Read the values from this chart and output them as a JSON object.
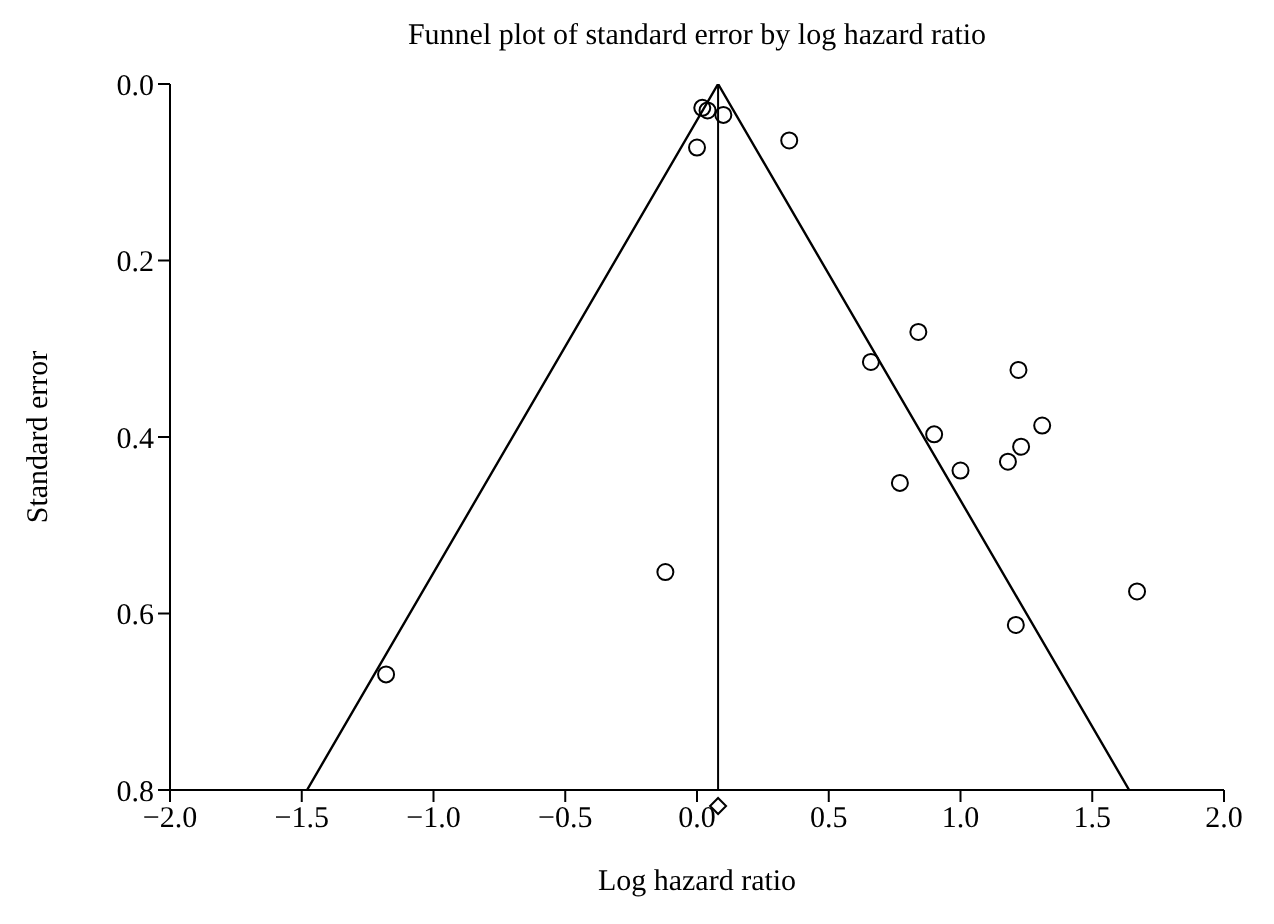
{
  "chart_data": {
    "type": "scatter",
    "title": "Funnel plot of standard error by log hazard ratio",
    "xlabel": "Log hazard ratio",
    "ylabel": "Standard error",
    "xlim": [
      -2.0,
      2.0
    ],
    "xticks": [
      {
        "value": -2,
        "label": "−2.0"
      },
      {
        "value": -1.5,
        "label": "−1.5"
      },
      {
        "value": -1,
        "label": "−1.0"
      },
      {
        "value": -0.5,
        "label": "−0.5"
      },
      {
        "value": 0,
        "label": "0.0"
      },
      {
        "value": 0.5,
        "label": "0.5"
      },
      {
        "value": 1,
        "label": "1.0"
      },
      {
        "value": 1.5,
        "label": "1.5"
      },
      {
        "value": 2,
        "label": "2.0"
      }
    ],
    "ylim": [
      0.8,
      0.0
    ],
    "yticks": [
      {
        "value": 0,
        "label": "0.0"
      },
      0.2,
      0.4,
      0.6,
      0.8
    ],
    "marker": "circle",
    "ref_lines": [
      {
        "axis": "x",
        "value": 0.08,
        "color": "#000000"
      }
    ],
    "series": [
      {
        "type": "scatter",
        "color": "#000000",
        "x": [
          0.02,
          0.04,
          0.1,
          0.0,
          0.35,
          0.84,
          0.66,
          1.22,
          0.9,
          1.31,
          1.23,
          1.18,
          1.0,
          0.77,
          -0.12,
          1.67,
          1.21,
          -1.18
        ],
        "values": [
          0.027,
          0.03,
          0.035,
          0.072,
          0.064,
          0.281,
          0.315,
          0.324,
          0.397,
          0.387,
          0.411,
          0.428,
          0.438,
          0.452,
          0.553,
          0.575,
          0.613,
          0.669
        ]
      },
      {
        "type": "line",
        "color": "#000000",
        "marker": "none",
        "x": [
          -1.48,
          0.08,
          1.64
        ],
        "values": [
          0.8,
          0.0,
          0.8
        ]
      }
    ]
  }
}
